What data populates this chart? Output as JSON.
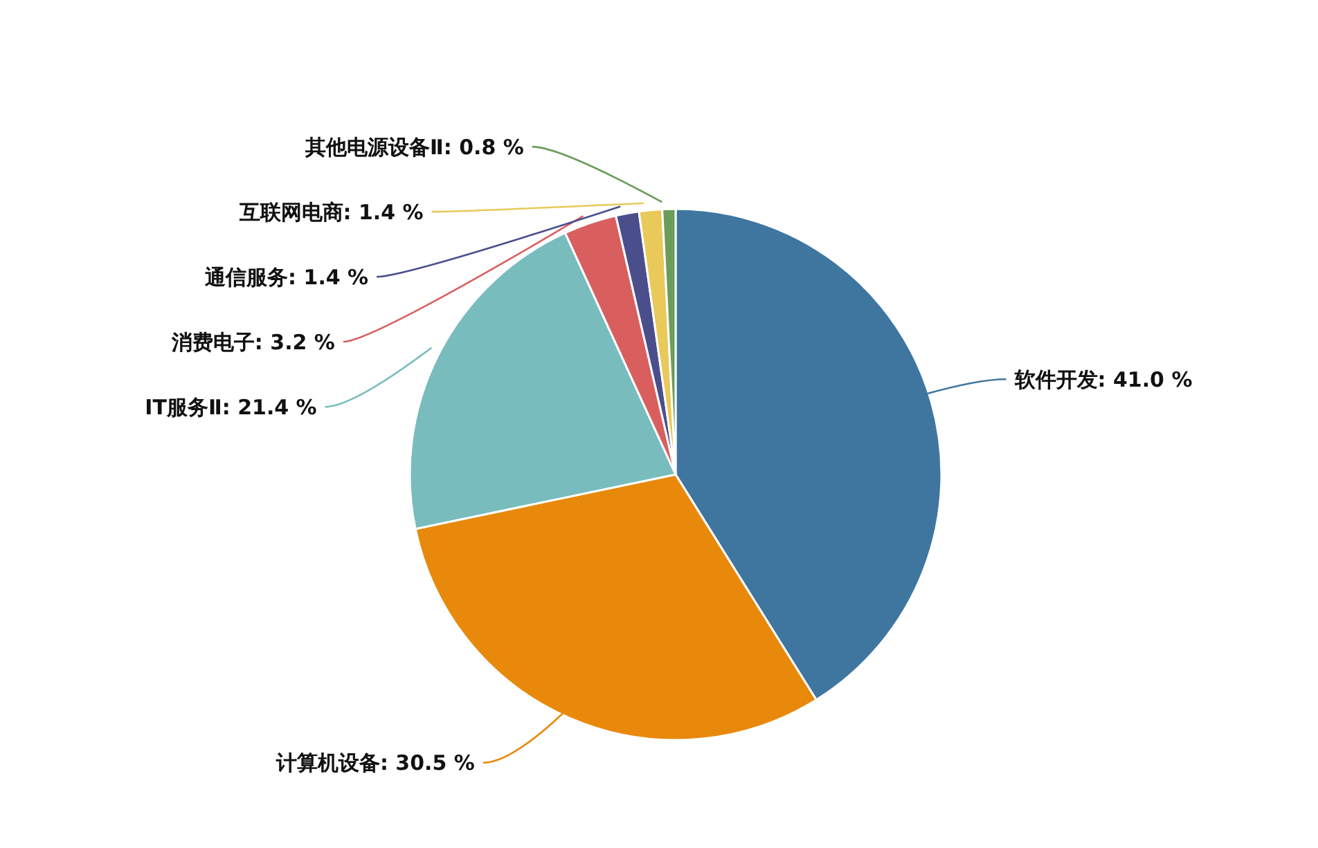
{
  "chart_data": {
    "type": "pie",
    "categories": [
      "软件开发",
      "计算机设备",
      "IT服务Ⅱ",
      "消费电子",
      "通信服务",
      "互联网电商",
      "其他电源设备Ⅱ"
    ],
    "values": [
      41.0,
      30.5,
      21.4,
      3.2,
      1.4,
      1.4,
      0.8
    ],
    "colors": [
      "#3f76a0",
      "#e8890c",
      "#78bcbe",
      "#d95f5f",
      "#4a4f8c",
      "#e8c95a",
      "#6a9c5a"
    ],
    "value_labels": [
      "41.0 %",
      "30.5 %",
      "21.4 %",
      "3.2 %",
      "1.4 %",
      "1.4 %",
      "0.8 %"
    ]
  }
}
